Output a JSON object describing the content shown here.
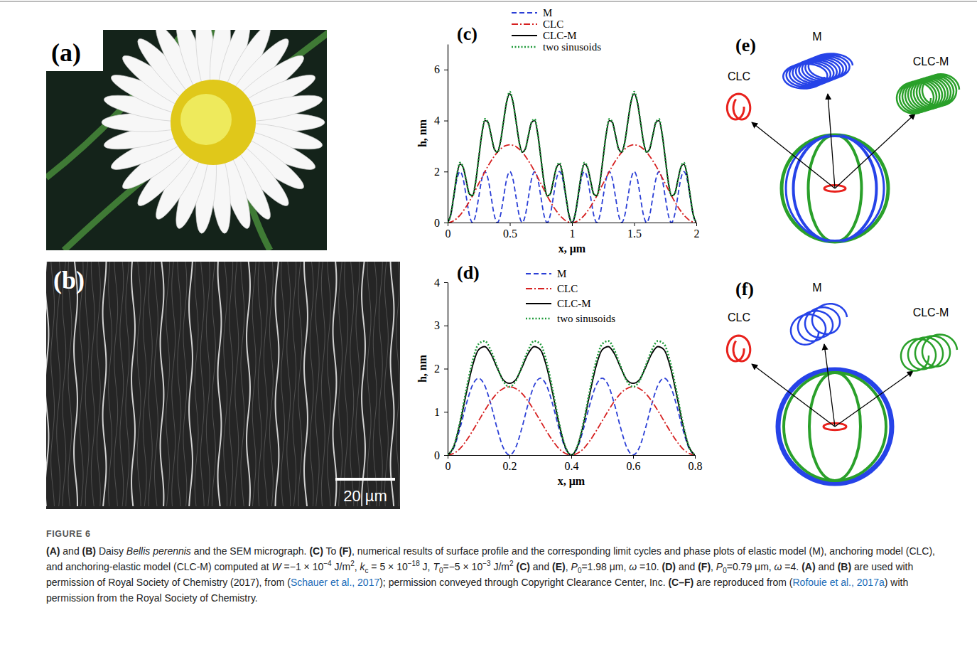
{
  "images": [
    {
      "title": "(a)"
    },
    {
      "title": "(b)",
      "scale_bar": "20 µm"
    }
  ],
  "chart_data": [
    {
      "type": "line",
      "title": "(c)",
      "x_label": "x, μm",
      "y_label": "h, nm",
      "xlim": [
        0,
        2
      ],
      "xticks": [
        0,
        0.5,
        1,
        1.5,
        2
      ],
      "ylim": [
        0,
        7
      ],
      "yticks": [
        0,
        2,
        4,
        6
      ],
      "grid": false,
      "legend": "top",
      "x": [
        0,
        0.025,
        0.05,
        0.075,
        0.1,
        0.125,
        0.15,
        0.175,
        0.2,
        0.225,
        0.25,
        0.275,
        0.3,
        0.325,
        0.35,
        0.375,
        0.4,
        0.425,
        0.45,
        0.475,
        0.5,
        0.525,
        0.55,
        0.575,
        0.6,
        0.625,
        0.65,
        0.675,
        0.7,
        0.725,
        0.75,
        0.775,
        0.8,
        0.825,
        0.85,
        0.875,
        0.9,
        0.925,
        0.95,
        0.975,
        1,
        1.025,
        1.05,
        1.075,
        1.1,
        1.125,
        1.15,
        1.175,
        1.2,
        1.225,
        1.25,
        1.275,
        1.3,
        1.325,
        1.35,
        1.375,
        1.4,
        1.425,
        1.45,
        1.475,
        1.5,
        1.525,
        1.55,
        1.575,
        1.6,
        1.625,
        1.65,
        1.675,
        1.7,
        1.725,
        1.75,
        1.775,
        1.8,
        1.825,
        1.85,
        1.875,
        1.9,
        1.925,
        1.95,
        1.975,
        2
      ],
      "series": [
        {
          "name": "M",
          "color": "#2b3fd6",
          "line_style": "dashed",
          "values": [
            0,
            0.29,
            1,
            1.71,
            2,
            1.71,
            1,
            0.29,
            0,
            0.29,
            1,
            1.71,
            2,
            1.71,
            1,
            0.29,
            0,
            0.29,
            1,
            1.71,
            2,
            1.71,
            1,
            0.29,
            0,
            0.29,
            1,
            1.71,
            2,
            1.71,
            1,
            0.29,
            0,
            0.29,
            1,
            1.71,
            2,
            1.71,
            1,
            0.29,
            0,
            0.29,
            1,
            1.71,
            2,
            1.71,
            1,
            0.29,
            0,
            0.29,
            1,
            1.71,
            2,
            1.71,
            1,
            0.29,
            0,
            0.29,
            1,
            1.71,
            2,
            1.71,
            1,
            0.29,
            0,
            0.29,
            1,
            1.71,
            2,
            1.71,
            1,
            0.29,
            0,
            0.29,
            1,
            1.71,
            2,
            1.71,
            1,
            0.29,
            0
          ]
        },
        {
          "name": "CLC",
          "color": "#d62020",
          "line_style": "dashdot",
          "values": [
            0,
            0.02,
            0.07,
            0.17,
            0.29,
            0.45,
            0.63,
            0.83,
            1.05,
            1.29,
            1.53,
            1.76,
            2,
            2.22,
            2.42,
            2.6,
            2.76,
            2.88,
            2.98,
            3.03,
            3.05,
            3.03,
            2.98,
            2.88,
            2.76,
            2.6,
            2.42,
            2.22,
            2,
            1.76,
            1.53,
            1.29,
            1.05,
            0.83,
            0.63,
            0.45,
            0.29,
            0.17,
            0.07,
            0.02,
            0,
            0.02,
            0.07,
            0.17,
            0.29,
            0.45,
            0.63,
            0.83,
            1.05,
            1.29,
            1.53,
            1.76,
            2,
            2.22,
            2.42,
            2.6,
            2.76,
            2.88,
            2.98,
            3.03,
            3.05,
            3.03,
            2.98,
            2.88,
            2.76,
            2.6,
            2.42,
            2.22,
            2,
            1.76,
            1.53,
            1.29,
            1.05,
            0.83,
            0.63,
            0.45,
            0.29,
            0.17,
            0.07,
            0.02,
            0
          ]
        },
        {
          "name": "CLC-M",
          "color": "#000000",
          "line_style": "solid",
          "values": [
            0,
            0.31,
            1.07,
            1.88,
            2.29,
            2.16,
            1.63,
            1.12,
            1.05,
            1.58,
            2.53,
            3.47,
            4,
            3.93,
            3.42,
            2.89,
            2.76,
            3.17,
            3.98,
            4.74,
            5.05,
            4.74,
            3.98,
            3.17,
            2.76,
            2.89,
            3.42,
            3.93,
            4,
            3.47,
            2.53,
            1.58,
            1.05,
            1.12,
            1.63,
            2.16,
            2.29,
            1.88,
            1.07,
            0.31,
            0,
            0.31,
            1.07,
            1.88,
            2.29,
            2.16,
            1.63,
            1.12,
            1.05,
            1.58,
            2.53,
            3.47,
            4,
            3.93,
            3.42,
            2.89,
            2.76,
            3.17,
            3.98,
            4.74,
            5.05,
            4.74,
            3.98,
            3.17,
            2.76,
            2.89,
            3.42,
            3.93,
            4,
            3.47,
            2.53,
            1.58,
            1.05,
            1.12,
            1.63,
            2.16,
            2.29,
            1.88,
            1.07,
            0.31,
            0
          ]
        },
        {
          "name": "two sinusoids",
          "color": "#1f9a3a",
          "line_style": "dotted",
          "values": [
            0,
            0.31,
            1.07,
            1.88,
            2.35,
            2.16,
            1.63,
            1.12,
            1.05,
            1.58,
            2.53,
            3.47,
            4.06,
            3.93,
            3.42,
            2.89,
            2.76,
            3.17,
            3.98,
            4.74,
            5.13,
            4.74,
            3.98,
            3.17,
            2.76,
            2.89,
            3.42,
            3.93,
            4.06,
            3.47,
            2.53,
            1.58,
            1.05,
            1.12,
            1.63,
            2.16,
            2.35,
            1.88,
            1.07,
            0.31,
            0,
            0.31,
            1.07,
            1.88,
            2.35,
            2.16,
            1.63,
            1.12,
            1.05,
            1.58,
            2.53,
            3.47,
            4.06,
            3.93,
            3.42,
            2.89,
            2.76,
            3.17,
            3.98,
            4.74,
            5.13,
            4.74,
            3.98,
            3.17,
            2.76,
            2.89,
            3.42,
            3.93,
            4.06,
            3.47,
            2.53,
            1.58,
            1.05,
            1.12,
            1.63,
            2.16,
            2.35,
            1.88,
            1.07,
            0.31,
            0
          ]
        }
      ]
    },
    {
      "type": "line",
      "title": "(d)",
      "x_label": "x, μm",
      "y_label": "h, nm",
      "xlim": [
        0,
        0.8
      ],
      "xticks": [
        0,
        0.2,
        0.4,
        0.6,
        0.8
      ],
      "ylim": [
        0,
        4
      ],
      "yticks": [
        0,
        1,
        2,
        3,
        4
      ],
      "grid": false,
      "legend": "top",
      "x": [
        0,
        0.02,
        0.04,
        0.06,
        0.08,
        0.1,
        0.12,
        0.14,
        0.16,
        0.18,
        0.2,
        0.22,
        0.24,
        0.26,
        0.28,
        0.3,
        0.32,
        0.34,
        0.36,
        0.38,
        0.4,
        0.42,
        0.44,
        0.46,
        0.48,
        0.5,
        0.52,
        0.54,
        0.56,
        0.58,
        0.6,
        0.62,
        0.64,
        0.66,
        0.68,
        0.7,
        0.72,
        0.74,
        0.76,
        0.78,
        0.8
      ],
      "series": [
        {
          "name": "M",
          "color": "#2b3fd6",
          "line_style": "dashed",
          "values": [
            0,
            0.17,
            0.62,
            1.17,
            1.61,
            1.78,
            1.61,
            1.17,
            0.62,
            0.17,
            0,
            0.17,
            0.62,
            1.17,
            1.61,
            1.78,
            1.61,
            1.17,
            0.62,
            0.17,
            0,
            0.17,
            0.62,
            1.17,
            1.61,
            1.78,
            1.61,
            1.17,
            0.62,
            0.17,
            0,
            0.17,
            0.62,
            1.17,
            1.61,
            1.78,
            1.61,
            1.17,
            0.62,
            0.17,
            0
          ]
        },
        {
          "name": "CLC",
          "color": "#d62020",
          "line_style": "dashdot",
          "values": [
            0,
            0.04,
            0.15,
            0.33,
            0.55,
            0.79,
            1.03,
            1.25,
            1.43,
            1.54,
            1.58,
            1.54,
            1.43,
            1.25,
            1.03,
            0.79,
            0.55,
            0.33,
            0.15,
            0.04,
            0,
            0.04,
            0.15,
            0.33,
            0.55,
            0.79,
            1.03,
            1.25,
            1.43,
            1.54,
            1.58,
            1.54,
            1.43,
            1.25,
            1.03,
            0.79,
            0.55,
            0.33,
            0.15,
            0.04,
            0
          ]
        },
        {
          "name": "CLC-M",
          "color": "#000000",
          "line_style": "solid",
          "values": [
            0,
            0.2,
            0.73,
            1.42,
            2.05,
            2.44,
            2.51,
            2.34,
            2.02,
            1.74,
            1.66,
            1.74,
            2.02,
            2.34,
            2.51,
            2.44,
            2.05,
            1.42,
            0.73,
            0.2,
            0,
            0.2,
            0.73,
            1.42,
            2.05,
            2.44,
            2.51,
            2.34,
            2.02,
            1.74,
            1.66,
            1.74,
            2.02,
            2.34,
            2.51,
            2.44,
            2.05,
            1.42,
            0.73,
            0.2,
            0
          ]
        },
        {
          "name": "two sinusoids",
          "color": "#1f9a3a",
          "line_style": "dotted",
          "values": [
            0,
            0.21,
            0.77,
            1.5,
            2.16,
            2.57,
            2.64,
            2.42,
            2.05,
            1.71,
            1.58,
            1.71,
            2.05,
            2.42,
            2.64,
            2.57,
            2.16,
            1.5,
            0.77,
            0.21,
            0,
            0.21,
            0.77,
            1.5,
            2.16,
            2.57,
            2.64,
            2.42,
            2.05,
            1.71,
            1.58,
            1.71,
            2.05,
            2.42,
            2.64,
            2.57,
            2.16,
            1.5,
            0.77,
            0.21,
            0
          ]
        }
      ]
    }
  ],
  "limit_cycles": [
    {
      "title": "(e)",
      "labels": [
        "CLC",
        "M",
        "CLC-M"
      ]
    },
    {
      "title": "(f)",
      "labels": [
        "CLC",
        "M",
        "CLC-M"
      ]
    }
  ],
  "caption": {
    "label": "FIGURE 6",
    "runs": [
      {
        "text": "(A)",
        "style": "bold"
      },
      {
        "text": " and "
      },
      {
        "text": "(B)",
        "style": "bold"
      },
      {
        "text": " Daisy "
      },
      {
        "text": "Bellis perennis",
        "style": "italic"
      },
      {
        "text": " and the SEM micrograph. "
      },
      {
        "text": "(C)",
        "style": "bold"
      },
      {
        "text": " To "
      },
      {
        "text": "(F)",
        "style": "bold"
      },
      {
        "text": ", numerical results of surface profile and the corresponding limit cycles and phase plots of elastic model (M), anchoring model (CLC), and anchoring-elastic model (CLC-M) computed at "
      },
      {
        "text": "W",
        "style": "italic"
      },
      {
        "text": " =−1 × 10"
      },
      {
        "text": "−4",
        "style": "sup"
      },
      {
        "text": " J/m"
      },
      {
        "text": "2",
        "style": "sup"
      },
      {
        "text": ", "
      },
      {
        "text": "k",
        "style": "italic"
      },
      {
        "text": "c",
        "style": "sub"
      },
      {
        "text": " = 5 × 10"
      },
      {
        "text": "−18",
        "style": "sup"
      },
      {
        "text": " J, "
      },
      {
        "text": "T",
        "style": "italic"
      },
      {
        "text": "0",
        "style": "sub"
      },
      {
        "text": "=−5 × 10"
      },
      {
        "text": "−3",
        "style": "sup"
      },
      {
        "text": " J/m"
      },
      {
        "text": "2",
        "style": "sup"
      },
      {
        "text": " "
      },
      {
        "text": "(C)",
        "style": "bold"
      },
      {
        "text": " and "
      },
      {
        "text": "(E)",
        "style": "bold"
      },
      {
        "text": ", "
      },
      {
        "text": "P",
        "style": "italic"
      },
      {
        "text": "0",
        "style": "sub"
      },
      {
        "text": "=1.98 μm, "
      },
      {
        "text": "ω",
        "style": "italic"
      },
      {
        "text": " =10. "
      },
      {
        "text": "(D)",
        "style": "bold"
      },
      {
        "text": " and "
      },
      {
        "text": "(F)",
        "style": "bold"
      },
      {
        "text": ", "
      },
      {
        "text": "P",
        "style": "italic"
      },
      {
        "text": "0",
        "style": "sub"
      },
      {
        "text": "=0.79 μm, "
      },
      {
        "text": "ω",
        "style": "italic"
      },
      {
        "text": " =4. "
      },
      {
        "text": "(A)",
        "style": "bold"
      },
      {
        "text": " and "
      },
      {
        "text": "(B)",
        "style": "bold"
      },
      {
        "text": " are used with permission of Royal Society of Chemistry (2017), from ("
      },
      {
        "text": "Schauer et al., 2017",
        "style": "link"
      },
      {
        "text": "); permission conveyed through Copyright Clearance Center, Inc. "
      },
      {
        "text": "(C–F)",
        "style": "bold"
      },
      {
        "text": " are reproduced from ("
      },
      {
        "text": "Rofouie et al., 2017a",
        "style": "link"
      },
      {
        "text": ") with permission from the Royal Society of Chemistry."
      }
    ]
  }
}
